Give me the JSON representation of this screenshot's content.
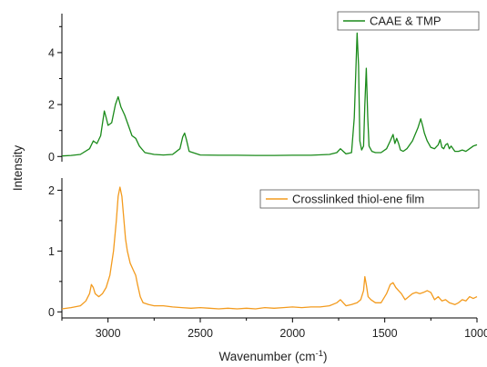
{
  "chart_data": [
    {
      "type": "line",
      "panel": "top",
      "ylabel": "Intensity",
      "xlabel": "Wavenumber (cm-1)",
      "xlim": [
        3250,
        1000
      ],
      "ylim": [
        -0.2,
        5.5
      ],
      "yticks": [
        0,
        2,
        4
      ],
      "grid": false,
      "legend_position": "top-right",
      "series": [
        {
          "name": "CAAE & TMP",
          "color": "#1a8a1a",
          "x": [
            3250,
            3200,
            3150,
            3100,
            3080,
            3060,
            3040,
            3020,
            3010,
            3000,
            2980,
            2960,
            2945,
            2930,
            2910,
            2890,
            2870,
            2850,
            2830,
            2800,
            2750,
            2700,
            2650,
            2610,
            2595,
            2585,
            2575,
            2560,
            2500,
            2400,
            2300,
            2200,
            2100,
            2000,
            1900,
            1800,
            1760,
            1740,
            1725,
            1710,
            1680,
            1665,
            1650,
            1642,
            1635,
            1625,
            1615,
            1608,
            1600,
            1592,
            1585,
            1570,
            1550,
            1520,
            1490,
            1470,
            1455,
            1445,
            1435,
            1425,
            1415,
            1400,
            1380,
            1350,
            1320,
            1305,
            1295,
            1285,
            1270,
            1250,
            1230,
            1210,
            1200,
            1190,
            1180,
            1170,
            1160,
            1150,
            1140,
            1120,
            1100,
            1080,
            1060,
            1040,
            1020,
            1000
          ],
          "values": [
            0.02,
            0.04,
            0.08,
            0.3,
            0.6,
            0.5,
            0.8,
            1.75,
            1.5,
            1.2,
            1.3,
            2.0,
            2.3,
            1.9,
            1.6,
            1.2,
            0.8,
            0.7,
            0.4,
            0.15,
            0.08,
            0.06,
            0.08,
            0.3,
            0.75,
            0.9,
            0.65,
            0.2,
            0.06,
            0.05,
            0.05,
            0.04,
            0.04,
            0.05,
            0.05,
            0.08,
            0.15,
            0.3,
            0.2,
            0.1,
            0.15,
            1.5,
            4.75,
            3.5,
            0.6,
            0.25,
            0.4,
            2.0,
            3.4,
            1.5,
            0.4,
            0.2,
            0.15,
            0.15,
            0.3,
            0.6,
            0.85,
            0.5,
            0.7,
            0.5,
            0.25,
            0.2,
            0.3,
            0.6,
            1.1,
            1.45,
            1.2,
            0.9,
            0.6,
            0.35,
            0.3,
            0.45,
            0.65,
            0.35,
            0.3,
            0.45,
            0.5,
            0.3,
            0.4,
            0.2,
            0.2,
            0.25,
            0.2,
            0.3,
            0.4,
            0.45
          ]
        }
      ]
    },
    {
      "type": "line",
      "panel": "bottom",
      "ylabel": "Intensity",
      "xlabel": "Wavenumber (cm-1)",
      "xlim": [
        3250,
        1000
      ],
      "ylim": [
        -0.1,
        2.2
      ],
      "yticks": [
        0,
        1,
        2
      ],
      "xticks": [
        3000,
        2500,
        2000,
        1500,
        1000
      ],
      "grid": false,
      "legend_position": "top-right",
      "series": [
        {
          "name": "Crosslinked thiol-ene film",
          "color": "#f39b1e",
          "x": [
            3250,
            3200,
            3150,
            3120,
            3100,
            3090,
            3080,
            3070,
            3050,
            3030,
            3010,
            2990,
            2970,
            2955,
            2945,
            2935,
            2925,
            2915,
            2905,
            2895,
            2880,
            2865,
            2850,
            2840,
            2825,
            2810,
            2780,
            2750,
            2700,
            2650,
            2600,
            2550,
            2500,
            2450,
            2400,
            2350,
            2300,
            2250,
            2200,
            2150,
            2100,
            2050,
            2000,
            1950,
            1900,
            1850,
            1800,
            1760,
            1740,
            1725,
            1710,
            1680,
            1650,
            1630,
            1615,
            1608,
            1600,
            1590,
            1575,
            1550,
            1520,
            1490,
            1470,
            1455,
            1440,
            1425,
            1410,
            1390,
            1370,
            1350,
            1330,
            1310,
            1290,
            1270,
            1250,
            1230,
            1210,
            1190,
            1170,
            1150,
            1120,
            1100,
            1080,
            1060,
            1040,
            1020,
            1000
          ],
          "values": [
            0.05,
            0.07,
            0.1,
            0.18,
            0.3,
            0.45,
            0.4,
            0.3,
            0.25,
            0.3,
            0.4,
            0.6,
            1.0,
            1.5,
            1.9,
            2.05,
            1.9,
            1.55,
            1.2,
            1.0,
            0.8,
            0.7,
            0.6,
            0.45,
            0.25,
            0.15,
            0.12,
            0.1,
            0.1,
            0.08,
            0.07,
            0.06,
            0.07,
            0.06,
            0.05,
            0.06,
            0.05,
            0.06,
            0.05,
            0.07,
            0.06,
            0.07,
            0.08,
            0.07,
            0.08,
            0.08,
            0.1,
            0.15,
            0.2,
            0.15,
            0.1,
            0.12,
            0.15,
            0.2,
            0.35,
            0.58,
            0.45,
            0.25,
            0.2,
            0.15,
            0.15,
            0.3,
            0.45,
            0.48,
            0.4,
            0.35,
            0.3,
            0.2,
            0.25,
            0.3,
            0.32,
            0.3,
            0.32,
            0.35,
            0.32,
            0.2,
            0.25,
            0.18,
            0.2,
            0.15,
            0.12,
            0.15,
            0.2,
            0.18,
            0.25,
            0.22,
            0.25
          ]
        }
      ]
    }
  ],
  "axis_titles": {
    "ylabel": "Intensity",
    "xlabel_main": "Wavenumber (cm",
    "xlabel_sup": "-1",
    "xlabel_close": ")"
  }
}
